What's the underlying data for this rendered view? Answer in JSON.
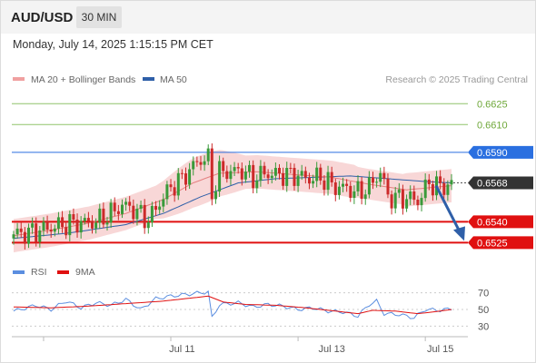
{
  "header": {
    "symbol": "AUD/USD",
    "timeframe": "30 MIN",
    "datetime": "Monday, July 14, 2025 1:15:15 PM CET"
  },
  "legend": {
    "ma20": "MA 20 + Bollinger Bands",
    "ma50": "MA 50",
    "source": "Research © 2025 Trading Central"
  },
  "rsi_legend": {
    "rsi": "RSI",
    "ma9": "9MA"
  },
  "colors": {
    "bullish": "#3a9a3a",
    "bearish": "#cc2a2a",
    "bollinger_band": "#f6c9c9",
    "ma20": "#e58080",
    "ma50": "#2f5fa8",
    "resistance_green": "#8fc46a",
    "resistance_blue": "#2a6fe0",
    "support_red": "#e01010",
    "current_price": "#333333",
    "projection_arrow": "#2f5fa8",
    "rsi_line": "#5b8ee0",
    "rsi_ma": "#e01010"
  },
  "chart_data": [
    {
      "type": "candlestick",
      "title": "AUD/USD",
      "timeframe": "30 MIN",
      "xlabel": "",
      "ylabel": "",
      "ylim": [
        0.652,
        0.6635
      ],
      "x_tick_labels": [
        "Jul 11",
        "Jul 13",
        "Jul 15"
      ],
      "levels": [
        {
          "value": 0.6625,
          "label": "0.6625",
          "kind": "resistance",
          "color": "#8fc46a"
        },
        {
          "value": 0.661,
          "label": "0.6610",
          "kind": "resistance",
          "color": "#8fc46a"
        },
        {
          "value": 0.659,
          "label": "0.6590",
          "kind": "pivot",
          "color": "#2a6fe0"
        },
        {
          "value": 0.6568,
          "label": "0.6568",
          "kind": "current",
          "color": "#333333"
        },
        {
          "value": 0.654,
          "label": "0.6540",
          "kind": "support",
          "color": "#e01010"
        },
        {
          "value": 0.6525,
          "label": "0.6525",
          "kind": "support",
          "color": "#e01010"
        }
      ],
      "projection": {
        "from": 0.6566,
        "to": 0.6525
      },
      "close_trajectory": [
        [
          0,
          0.6531
        ],
        [
          4,
          0.6532
        ],
        [
          10,
          0.6536
        ],
        [
          16,
          0.6539
        ],
        [
          22,
          0.654
        ],
        [
          26,
          0.6546
        ],
        [
          29,
          0.6552
        ],
        [
          32,
          0.6549
        ],
        [
          36,
          0.6541
        ],
        [
          39,
          0.6554
        ],
        [
          42,
          0.6565
        ],
        [
          45,
          0.6571
        ],
        [
          48,
          0.658
        ],
        [
          50,
          0.6585
        ],
        [
          52,
          0.6585
        ],
        [
          53,
          0.656
        ],
        [
          55,
          0.6576
        ],
        [
          58,
          0.6576
        ],
        [
          61,
          0.6577
        ],
        [
          64,
          0.6571
        ],
        [
          67,
          0.6575
        ],
        [
          70,
          0.6574
        ],
        [
          73,
          0.6574
        ],
        [
          76,
          0.6573
        ],
        [
          79,
          0.6571
        ],
        [
          82,
          0.6572
        ],
        [
          86,
          0.6565
        ],
        [
          89,
          0.6564
        ],
        [
          92,
          0.6561
        ],
        [
          95,
          0.6565
        ],
        [
          98,
          0.6576
        ],
        [
          100,
          0.6558
        ],
        [
          103,
          0.6557
        ],
        [
          106,
          0.6557
        ],
        [
          108,
          0.6555
        ],
        [
          111,
          0.6568
        ],
        [
          114,
          0.6565
        ],
        [
          117,
          0.6567
        ]
      ],
      "ma20_trajectory": [
        [
          0,
          0.653
        ],
        [
          10,
          0.6534
        ],
        [
          20,
          0.6539
        ],
        [
          30,
          0.6546
        ],
        [
          40,
          0.6556
        ],
        [
          48,
          0.6568
        ],
        [
          55,
          0.6575
        ],
        [
          65,
          0.6576
        ],
        [
          75,
          0.6574
        ],
        [
          85,
          0.6572
        ],
        [
          95,
          0.6567
        ],
        [
          105,
          0.6563
        ],
        [
          117,
          0.6566
        ]
      ],
      "ma50_trajectory": [
        [
          0,
          0.6528
        ],
        [
          15,
          0.6532
        ],
        [
          30,
          0.6538
        ],
        [
          40,
          0.6546
        ],
        [
          50,
          0.6558
        ],
        [
          60,
          0.6568
        ],
        [
          70,
          0.6571
        ],
        [
          80,
          0.6572
        ],
        [
          90,
          0.6573
        ],
        [
          100,
          0.6571
        ],
        [
          110,
          0.6569
        ],
        [
          117,
          0.6568
        ]
      ]
    },
    {
      "type": "line",
      "title": "RSI",
      "ylim": [
        20,
        80
      ],
      "y_tick_labels": [
        "70",
        "50",
        "30"
      ],
      "series": [
        {
          "name": "RSI",
          "points": [
            [
              0,
              48
            ],
            [
              6,
              55
            ],
            [
              10,
              50
            ],
            [
              14,
              60
            ],
            [
              18,
              52
            ],
            [
              22,
              58
            ],
            [
              26,
              55
            ],
            [
              30,
              62
            ],
            [
              34,
              50
            ],
            [
              38,
              63
            ],
            [
              42,
              66
            ],
            [
              46,
              68
            ],
            [
              50,
              70
            ],
            [
              52,
              71
            ],
            [
              53,
              40
            ],
            [
              55,
              56
            ],
            [
              60,
              58
            ],
            [
              64,
              53
            ],
            [
              68,
              56
            ],
            [
              72,
              54
            ],
            [
              76,
              50
            ],
            [
              80,
              52
            ],
            [
              84,
              48
            ],
            [
              88,
              47
            ],
            [
              92,
              42
            ],
            [
              95,
              56
            ],
            [
              97,
              60
            ],
            [
              99,
              45
            ],
            [
              103,
              44
            ],
            [
              107,
              40
            ],
            [
              110,
              50
            ],
            [
              114,
              49
            ],
            [
              117,
              51
            ]
          ]
        },
        {
          "name": "9MA",
          "points": [
            [
              0,
              53
            ],
            [
              10,
              52
            ],
            [
              20,
              54
            ],
            [
              30,
              57
            ],
            [
              40,
              60
            ],
            [
              48,
              64
            ],
            [
              52,
              66
            ],
            [
              56,
              59
            ],
            [
              62,
              56
            ],
            [
              70,
              55
            ],
            [
              78,
              52
            ],
            [
              86,
              48
            ],
            [
              92,
              45
            ],
            [
              96,
              49
            ],
            [
              102,
              48
            ],
            [
              108,
              45
            ],
            [
              112,
              47
            ],
            [
              117,
              50
            ]
          ]
        }
      ]
    }
  ]
}
